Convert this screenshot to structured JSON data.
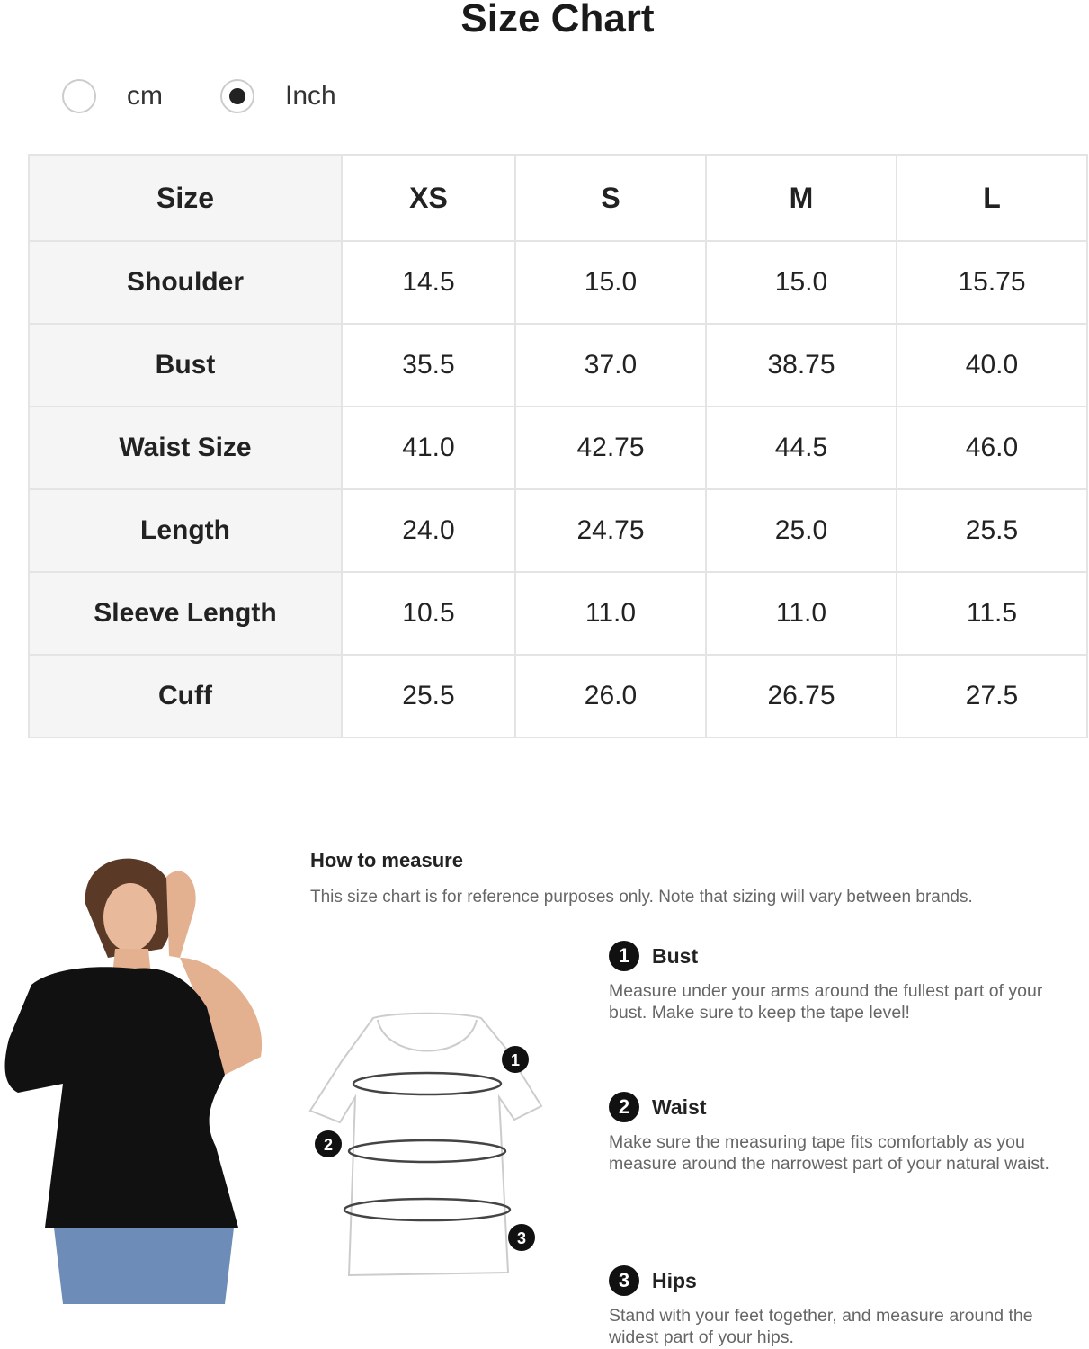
{
  "title": "Size Chart",
  "units": {
    "options": [
      {
        "label": "cm",
        "selected": false
      },
      {
        "label": "Inch",
        "selected": true
      }
    ]
  },
  "table": {
    "headers": [
      "Size",
      "XS",
      "S",
      "M",
      "L"
    ],
    "rows": [
      {
        "label": "Shoulder",
        "values": [
          "14.5",
          "15.0",
          "15.0",
          "15.75"
        ]
      },
      {
        "label": "Bust",
        "values": [
          "35.5",
          "37.0",
          "38.75",
          "40.0"
        ]
      },
      {
        "label": "Waist Size",
        "values": [
          "41.0",
          "42.75",
          "44.5",
          "46.0"
        ]
      },
      {
        "label": "Length",
        "values": [
          "24.0",
          "24.75",
          "25.0",
          "25.5"
        ]
      },
      {
        "label": "Sleeve Length",
        "values": [
          "10.5",
          "11.0",
          "11.0",
          "11.5"
        ]
      },
      {
        "label": "Cuff",
        "values": [
          "25.5",
          "26.0",
          "26.75",
          "27.5"
        ]
      }
    ]
  },
  "measure": {
    "title": "How to measure",
    "note": "This size chart is for reference purposes only. Note that sizing will vary between brands.",
    "items": [
      {
        "num": "1",
        "title": "Bust",
        "desc": "Measure under your arms around the fullest part of your bust. Make sure to keep the tape level!"
      },
      {
        "num": "2",
        "title": "Waist",
        "desc": "Make sure the measuring tape fits comfortably as you measure around the narrowest part of your natural waist."
      },
      {
        "num": "3",
        "title": "Hips",
        "desc": "Stand with your feet together, and measure around the widest part of your hips."
      }
    ]
  }
}
